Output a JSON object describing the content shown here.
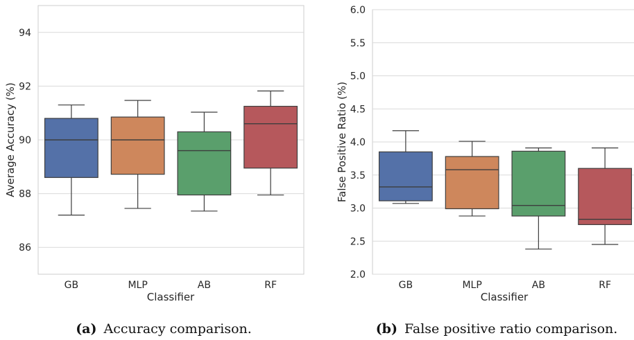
{
  "chart_data": [
    {
      "type": "box",
      "caption_label": "(a)",
      "caption_text": "Accuracy comparison.",
      "xlabel": "Classifier",
      "ylabel": "Average Accuracy (%)",
      "ylim": [
        85,
        95
      ],
      "yticks": [
        86,
        88,
        90,
        92,
        94
      ],
      "grid": true,
      "categories": [
        "GB",
        "MLP",
        "AB",
        "RF"
      ],
      "boxes": [
        {
          "category": "GB",
          "min": 87.2,
          "q1": 88.6,
          "median": 90.0,
          "q3": 90.8,
          "max": 91.3,
          "color": "#5471a8"
        },
        {
          "category": "MLP",
          "min": 87.45,
          "q1": 88.72,
          "median": 90.0,
          "q3": 90.85,
          "max": 91.47,
          "color": "#ce875c"
        },
        {
          "category": "AB",
          "min": 87.35,
          "q1": 87.95,
          "median": 89.6,
          "q3": 90.3,
          "max": 91.03,
          "color": "#5a9f6c"
        },
        {
          "category": "RF",
          "min": 87.95,
          "q1": 88.95,
          "median": 90.6,
          "q3": 91.25,
          "max": 91.82,
          "color": "#b6585c"
        }
      ]
    },
    {
      "type": "box",
      "caption_label": "(b)",
      "caption_text": "False positive ratio comparison.",
      "xlabel": "Classifier",
      "ylabel": "False Positive Ratio (%)",
      "ylim": [
        2.0,
        6.0
      ],
      "yticks": [
        "2.0",
        "2.5",
        "3.0",
        "3.5",
        "4.0",
        "4.5",
        "5.0",
        "5.5",
        "6.0"
      ],
      "grid": true,
      "categories": [
        "GB",
        "MLP",
        "AB",
        "RF"
      ],
      "boxes": [
        {
          "category": "GB",
          "min": 3.07,
          "q1": 3.11,
          "median": 3.32,
          "q3": 3.85,
          "max": 4.17,
          "color": "#5471a8"
        },
        {
          "category": "MLP",
          "min": 2.88,
          "q1": 2.99,
          "median": 3.58,
          "q3": 3.78,
          "max": 4.01,
          "color": "#ce875c"
        },
        {
          "category": "AB",
          "min": 2.38,
          "q1": 2.88,
          "median": 3.04,
          "q3": 3.86,
          "max": 3.91,
          "color": "#5a9f6c"
        },
        {
          "category": "RF",
          "min": 2.45,
          "q1": 2.75,
          "median": 2.83,
          "q3": 3.6,
          "max": 3.91,
          "color": "#b6585c"
        }
      ]
    }
  ]
}
